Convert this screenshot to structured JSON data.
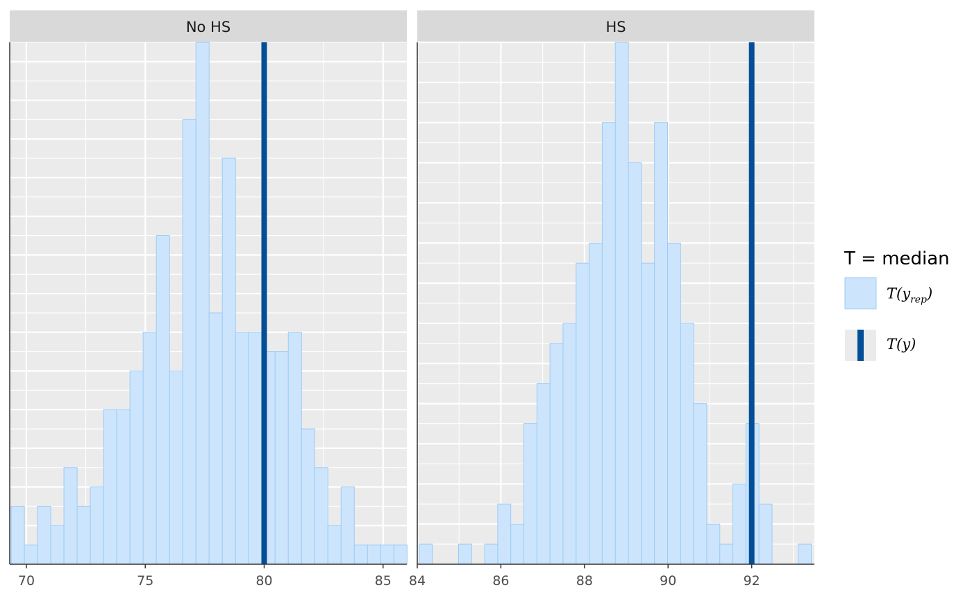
{
  "chart_data": {
    "type": "bar",
    "subtype": "histogram",
    "colors": {
      "bar_fill": "#cce5fd",
      "bar_stroke": "#9dcbf3",
      "observed_line": "#034e96",
      "panel_bg": "#ebebeb",
      "strip_bg": "#d9d9d9",
      "grid": "#ffffff"
    },
    "grid": true,
    "legend_position": "right",
    "legend": {
      "title": "T = median",
      "entries": [
        {
          "key": "yrep",
          "label": "T(y",
          "subscript": "rep",
          "suffix": ")"
        },
        {
          "key": "y",
          "label": "T(y)"
        }
      ]
    },
    "panels": [
      {
        "title": "No HS",
        "xlim": [
          69.3,
          86.0
        ],
        "ylim": [
          0,
          27
        ],
        "x_ticks": [
          70,
          75,
          80,
          85
        ],
        "x_tick_labels": [
          "70",
          "75",
          "80",
          "85"
        ],
        "observed": 80,
        "bin_start": 69.36,
        "bin_width": 0.555,
        "counts": [
          3,
          1,
          3,
          2,
          5,
          3,
          4,
          8,
          8,
          10,
          12,
          17,
          10,
          23,
          27,
          13,
          21,
          12,
          12,
          11,
          11,
          12,
          7,
          5,
          2,
          4,
          1,
          1,
          1,
          1
        ]
      },
      {
        "title": "HS",
        "xlim": [
          84.0,
          93.5
        ],
        "ylim": [
          0,
          26
        ],
        "x_ticks": [
          84,
          86,
          88,
          90,
          92
        ],
        "x_tick_labels": [
          "84",
          "86",
          "88",
          "90",
          "92"
        ],
        "observed": 92,
        "bin_start": 84.05,
        "bin_width": 0.3125,
        "counts": [
          1,
          0,
          0,
          1,
          0,
          1,
          3,
          2,
          7,
          9,
          11,
          12,
          15,
          16,
          22,
          26,
          20,
          15,
          22,
          16,
          12,
          8,
          2,
          1,
          4,
          7,
          3,
          0,
          0,
          1
        ]
      }
    ]
  }
}
